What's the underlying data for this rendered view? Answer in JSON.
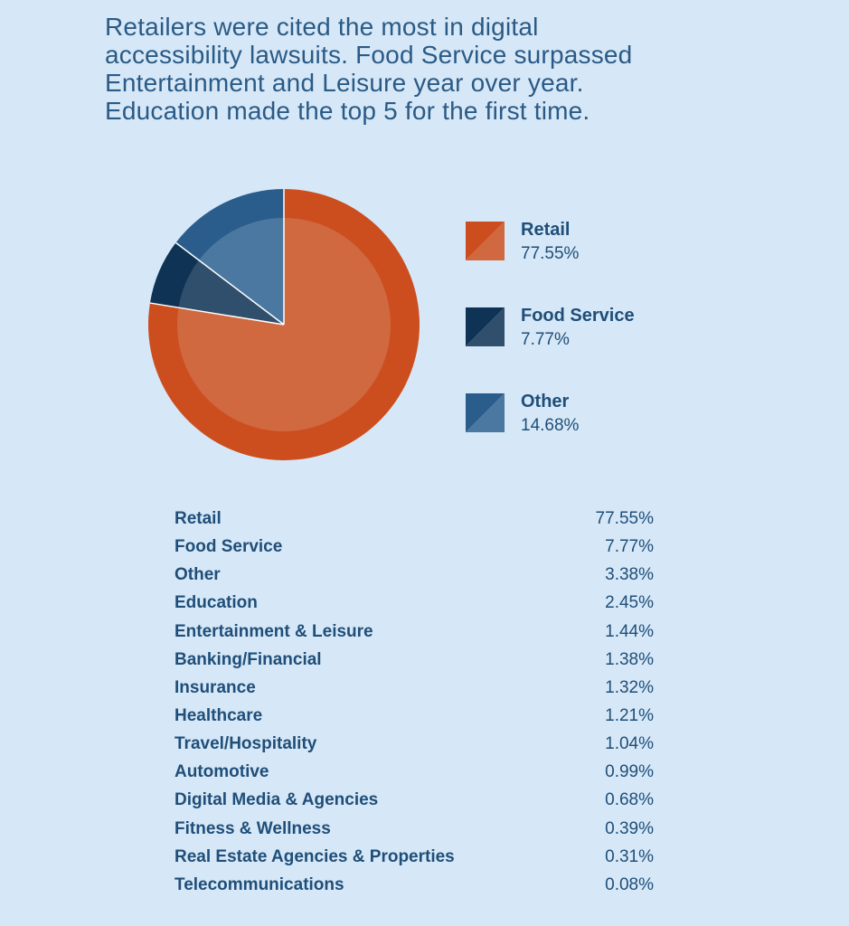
{
  "headline": {
    "lines": [
      "Retailers were cited the most in digital",
      "accessibility lawsuits. Food Service surpassed",
      "Entertainment and Leisure year over year.",
      "Education made the top 5 for the first time."
    ]
  },
  "colors": {
    "background": "#d6e8f7",
    "text": "#1f4e79",
    "retail_outer": "#cc4e1e",
    "retail_inner": "#d06840",
    "food_outer": "#0f3354",
    "food_inner": "#2f4f6c",
    "other_outer": "#2b5d8c",
    "other_inner": "#4a78a0"
  },
  "chart_data": {
    "type": "pie",
    "slices": [
      {
        "label": "Retail",
        "value": 77.55,
        "display": "77.55%",
        "color": "#cc4e1e",
        "inner_color": "#d06840"
      },
      {
        "label": "Food Service",
        "value": 7.77,
        "display": "7.77%",
        "color": "#0f3354",
        "inner_color": "#2f4f6c"
      },
      {
        "label": "Other",
        "value": 14.68,
        "display": "14.68%",
        "color": "#2b5d8c",
        "inner_color": "#4a78a0"
      }
    ],
    "legend_position": "right"
  },
  "table": {
    "rows": [
      {
        "label": "Retail",
        "value": "77.55%"
      },
      {
        "label": "Food Service",
        "value": "7.77%"
      },
      {
        "label": "Other",
        "value": "3.38%"
      },
      {
        "label": "Education",
        "value": "2.45%"
      },
      {
        "label": "Entertainment & Leisure",
        "value": "1.44%"
      },
      {
        "label": "Banking/Financial",
        "value": "1.38%"
      },
      {
        "label": "Insurance",
        "value": "1.32%"
      },
      {
        "label": "Healthcare",
        "value": "1.21%"
      },
      {
        "label": "Travel/Hospitality",
        "value": "1.04%"
      },
      {
        "label": "Automotive",
        "value": "0.99%"
      },
      {
        "label": "Digital Media & Agencies",
        "value": "0.68%"
      },
      {
        "label": "Fitness & Wellness",
        "value": "0.39%"
      },
      {
        "label": "Real Estate Agencies & Properties",
        "value": "0.31%"
      },
      {
        "label": "Telecommunications",
        "value": "0.08%"
      }
    ]
  }
}
